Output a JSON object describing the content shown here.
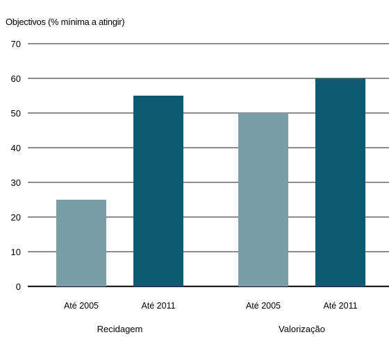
{
  "chart_data": {
    "type": "bar",
    "title": "Objectivos (% mínima a atingir)",
    "xlabel": "",
    "ylabel": "",
    "ylim": [
      0,
      70
    ],
    "yticks": [
      0,
      10,
      20,
      30,
      40,
      50,
      60,
      70
    ],
    "grid": true,
    "groups": [
      {
        "label": "Recidagem",
        "categories": [
          "Até 2005",
          "Até 2011"
        ],
        "values": [
          25,
          55
        ]
      },
      {
        "label": "Valorização",
        "categories": [
          "Até 2005",
          "Até 2011"
        ],
        "values": [
          50,
          60
        ]
      }
    ],
    "colors": {
      "Até 2005": "#7a9ea8",
      "Até 2011": "#0d5a73",
      "grid": "#1a1a1a",
      "baseline": "#1a1a1a"
    }
  }
}
